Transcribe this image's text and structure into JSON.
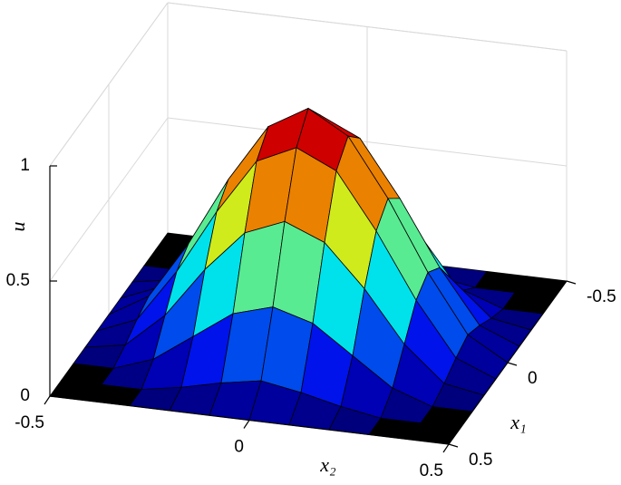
{
  "chart_data": {
    "type": "surface3d",
    "xlabel": "x₂",
    "ylabel": "x₁",
    "zlabel": "u",
    "x": [
      -0.5,
      -0.4,
      -0.3,
      -0.2,
      -0.1,
      0,
      0.1,
      0.2,
      0.3,
      0.4,
      0.5
    ],
    "y": [
      -0.5,
      -0.4,
      -0.3,
      -0.2,
      -0.1,
      0,
      0.1,
      0.2,
      0.3,
      0.4,
      0.5
    ],
    "z": [
      [
        0,
        0,
        0,
        0,
        0,
        0,
        0,
        0,
        0,
        0,
        0
      ],
      [
        0,
        0,
        0,
        0.03,
        0.07,
        0.1,
        0.07,
        0.03,
        0,
        0,
        0
      ],
      [
        0,
        0,
        0.06,
        0.18,
        0.3,
        0.35,
        0.3,
        0.18,
        0.06,
        0,
        0
      ],
      [
        0,
        0.03,
        0.18,
        0.4,
        0.58,
        0.65,
        0.58,
        0.4,
        0.18,
        0.03,
        0
      ],
      [
        0,
        0.07,
        0.3,
        0.58,
        0.82,
        0.9,
        0.82,
        0.58,
        0.3,
        0.07,
        0
      ],
      [
        0,
        0.1,
        0.35,
        0.65,
        0.9,
        1,
        0.9,
        0.65,
        0.35,
        0.1,
        0
      ],
      [
        0,
        0.07,
        0.3,
        0.58,
        0.82,
        0.9,
        0.82,
        0.58,
        0.3,
        0.07,
        0
      ],
      [
        0,
        0.03,
        0.18,
        0.4,
        0.58,
        0.65,
        0.58,
        0.4,
        0.18,
        0.03,
        0
      ],
      [
        0,
        0,
        0.06,
        0.18,
        0.3,
        0.35,
        0.3,
        0.18,
        0.06,
        0,
        0
      ],
      [
        0,
        0,
        0,
        0.03,
        0.07,
        0.1,
        0.07,
        0.03,
        0,
        0,
        0
      ],
      [
        0,
        0,
        0,
        0,
        0,
        0,
        0,
        0,
        0,
        0,
        0
      ]
    ],
    "xlim": [
      -0.5,
      0.5
    ],
    "ylim": [
      -0.5,
      0.5
    ],
    "zlim": [
      0,
      1
    ],
    "xticks": [
      -0.5,
      0,
      0.5
    ],
    "yticks": [
      -0.5,
      0,
      0.5
    ],
    "zticks": [
      0,
      0.5,
      1
    ],
    "colormap": "jet",
    "edge_color": "#000000",
    "grid": true
  }
}
